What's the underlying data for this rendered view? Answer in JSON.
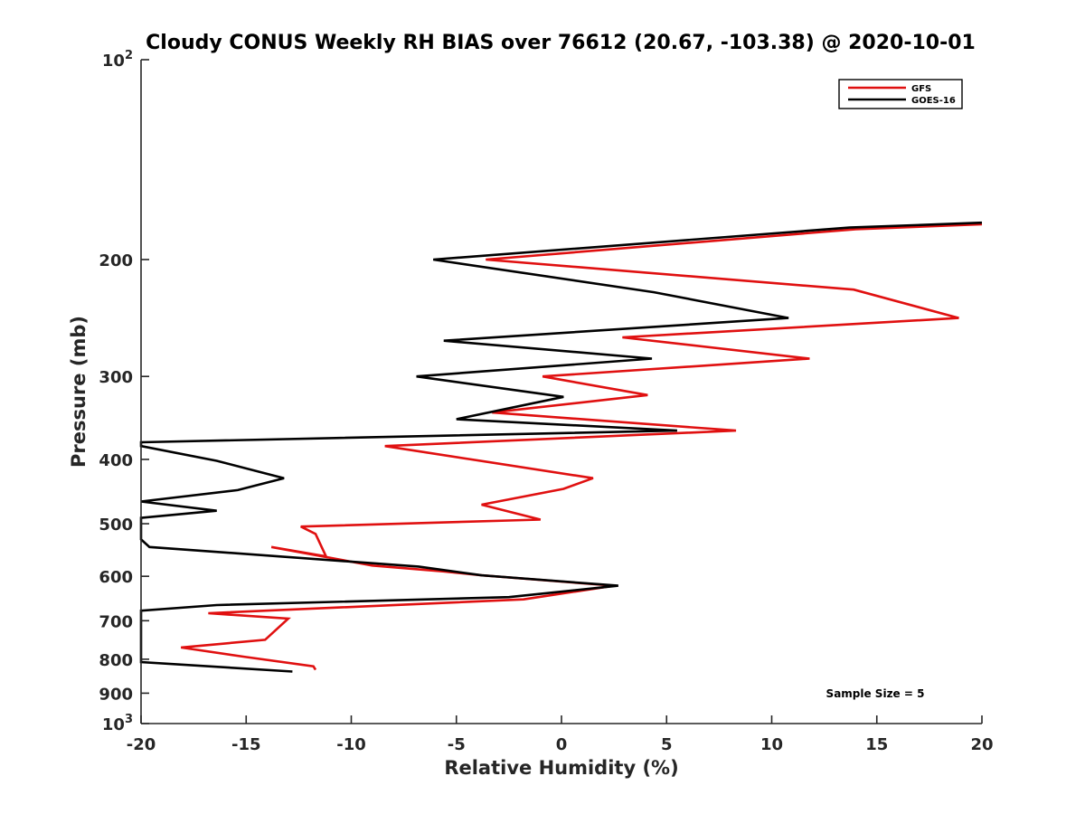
{
  "chart_data": {
    "type": "line",
    "title": "Cloudy CONUS Weekly RH BIAS over 76612 (20.67, -103.38) @ 2020-10-01",
    "xlabel": "Relative Humidity (%)",
    "ylabel": "Pressure (mb)",
    "xlim": [
      -20,
      20
    ],
    "ylim": [
      100,
      1000
    ],
    "yscale": "log",
    "y_reversed": true,
    "xticks": [
      -20,
      -15,
      -10,
      -5,
      0,
      5,
      10,
      15,
      20
    ],
    "xtick_labels": [
      "-20",
      "-15",
      "-10",
      "-5",
      "0",
      "5",
      "10",
      "15",
      "20"
    ],
    "yticks": [
      {
        "value": 100,
        "base": "10",
        "exp": "2"
      },
      {
        "value": 200,
        "label": "200"
      },
      {
        "value": 300,
        "label": "300"
      },
      {
        "value": 400,
        "label": "400"
      },
      {
        "value": 500,
        "label": "500"
      },
      {
        "value": 600,
        "label": "600"
      },
      {
        "value": 700,
        "label": "700"
      },
      {
        "value": 800,
        "label": "800"
      },
      {
        "value": 900,
        "label": "900"
      },
      {
        "value": 1000,
        "base": "10",
        "exp": "3"
      }
    ],
    "grid": false,
    "legend_position": "top-right",
    "series": [
      {
        "name": "GFS",
        "color": "#e01010",
        "x": [
          20.0,
          14.0,
          -3.6,
          13.9,
          18.9,
          2.9,
          11.8,
          -0.9,
          4.1,
          -3.3,
          8.3,
          -8.4,
          1.5,
          0.1,
          -3.8,
          -1.0,
          -12.4,
          -11.7,
          -11.2,
          -13.8,
          -9.0,
          -5.6,
          -3.8,
          2.5,
          -1.8,
          -16.8,
          -13.0,
          -14.1,
          -18.1,
          -15.1,
          -11.8,
          -11.7
        ],
        "y": [
          177,
          180,
          200,
          222,
          245,
          262,
          282,
          300,
          320,
          340,
          362,
          382,
          427,
          443,
          468,
          493,
          505,
          518,
          560,
          542,
          578,
          590,
          598,
          620,
          650,
          682,
          695,
          748,
          768,
          793,
          820,
          830
        ]
      },
      {
        "name": "GOES-16",
        "color": "#000000",
        "x": [
          20.0,
          13.7,
          -6.1,
          4.4,
          10.8,
          -5.6,
          4.3,
          -6.9,
          0.1,
          -5.0,
          5.5,
          -20.0,
          -20.0,
          -16.4,
          -13.2,
          -15.4,
          -20.0,
          -16.4,
          -20.0,
          -20.0,
          -19.6,
          -6.8,
          -3.8,
          2.7,
          -2.5,
          -16.4,
          -20.0,
          -20.0,
          -12.8
        ],
        "y": [
          176,
          179,
          200,
          224,
          245,
          265,
          282,
          300,
          322,
          348,
          362,
          377,
          382,
          402,
          427,
          445,
          463,
          478,
          490,
          528,
          542,
          580,
          598,
          620,
          645,
          663,
          676,
          808,
          835
        ]
      }
    ],
    "annotations": [
      "Sample Size = 5"
    ]
  }
}
